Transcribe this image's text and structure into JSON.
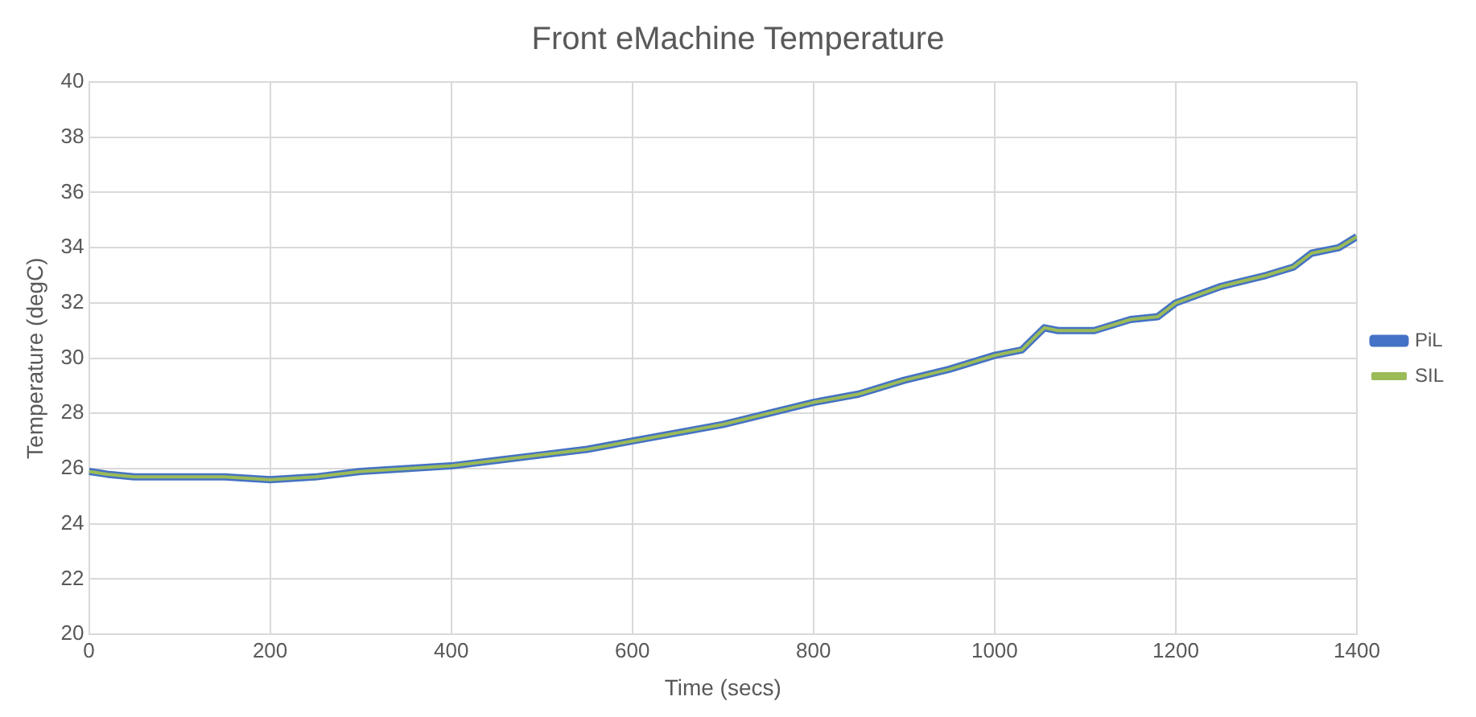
{
  "chart_data": {
    "type": "line",
    "title": "Front eMachine Temperature",
    "xlabel": "Time (secs)",
    "ylabel": "Temperature (degC)",
    "x": [
      0,
      20,
      50,
      100,
      150,
      200,
      250,
      300,
      350,
      400,
      450,
      500,
      550,
      600,
      650,
      700,
      750,
      800,
      850,
      900,
      950,
      1000,
      1030,
      1055,
      1070,
      1110,
      1150,
      1180,
      1200,
      1250,
      1300,
      1330,
      1350,
      1380,
      1400
    ],
    "series": [
      {
        "name": "PiL",
        "color": "#4472c4",
        "values": [
          25.9,
          25.8,
          25.7,
          25.7,
          25.7,
          25.6,
          25.7,
          25.9,
          26.0,
          26.1,
          26.3,
          26.5,
          26.7,
          27.0,
          27.3,
          27.6,
          28.0,
          28.4,
          28.7,
          29.2,
          29.6,
          30.1,
          30.3,
          31.1,
          31.0,
          31.0,
          31.4,
          31.5,
          32.0,
          32.6,
          33.0,
          33.3,
          33.8,
          34.0,
          34.4
        ]
      },
      {
        "name": "SIL",
        "color": "#9bbb59",
        "values": [
          25.9,
          25.8,
          25.7,
          25.7,
          25.7,
          25.6,
          25.7,
          25.9,
          26.0,
          26.1,
          26.3,
          26.5,
          26.7,
          27.0,
          27.3,
          27.6,
          28.0,
          28.4,
          28.7,
          29.2,
          29.6,
          30.1,
          30.3,
          31.1,
          31.0,
          31.0,
          31.4,
          31.5,
          32.0,
          32.6,
          33.0,
          33.3,
          33.8,
          34.0,
          34.4
        ]
      }
    ],
    "xlim": [
      0,
      1400
    ],
    "xticks": [
      0,
      200,
      400,
      600,
      800,
      1000,
      1200,
      1400
    ],
    "ylim": [
      20,
      40
    ],
    "yticks": [
      20,
      22,
      24,
      26,
      28,
      30,
      32,
      34,
      36,
      38,
      40
    ],
    "grid": true,
    "legend": "right",
    "marker": "none",
    "line_style": "solid"
  }
}
